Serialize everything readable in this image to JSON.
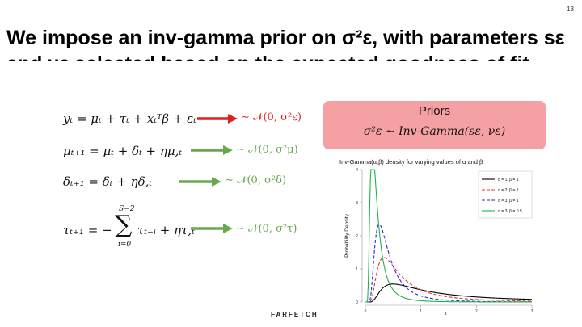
{
  "slide": {
    "number": "13",
    "title": "We impose an inv-gamma prior on σ²ε, with parameters sε",
    "title_line2": "and νε selected based on the expected goodness of fit",
    "logo": "FARFETCH"
  },
  "equations": {
    "y": "yₜ = μₜ + τₜ + xₜᵀβ + εₜ",
    "y_dist": "∼ 𝒩(0, σ²ε)",
    "mu": "μₜ₊₁ = μₜ + δₜ + ημ,ₜ",
    "mu_dist": "∼ 𝒩(0, σ²μ)",
    "delta": "δₜ₊₁ = δₜ + ηδ,ₜ",
    "delta_dist": "∼ 𝒩(0, σ²δ)",
    "tau_lhs": "τₜ₊₁ = −",
    "tau_sum_upper": "S−2",
    "tau_sum_lower": "i=0",
    "tau_rhs": "τₜ₋ᵢ + ητ,ₜ",
    "tau_dist": "∼ 𝒩(0, σ²τ)"
  },
  "priors": {
    "label": "Priors",
    "formula": "σ²ε ∼ Inv-Gamma(sε, νε)"
  },
  "colors": {
    "priors_bg": "#f5a0a3",
    "arrow_red": "#e02020",
    "arrow_green": "#6aa84f"
  },
  "chart_data": {
    "type": "line",
    "title": "Inv-Gamma(α,β) density for varying values of α and β",
    "xlabel": "x",
    "ylabel": "Probability Density",
    "xlim": [
      0,
      3
    ],
    "ylim": [
      0,
      4
    ],
    "x_ticks": [
      "0",
      "1",
      "2",
      "3"
    ],
    "y_ticks": [
      "0",
      "1",
      "2",
      "3",
      "4"
    ],
    "grid": false,
    "legend_position": "top-right",
    "series": [
      {
        "name": "α = 1, β = 1",
        "color": "#000000",
        "dash": false,
        "alpha": 1,
        "beta": 1
      },
      {
        "name": "α = 2, β = 1",
        "color": "#e8323c",
        "dash": true,
        "alpha": 2,
        "beta": 1
      },
      {
        "name": "α = 3, β = 1",
        "color": "#2a2ad0",
        "dash": true,
        "alpha": 3,
        "beta": 1
      },
      {
        "name": "α = 3, β = 0.5",
        "color": "#22b14c",
        "dash": false,
        "alpha": 3,
        "beta": 0.5
      }
    ]
  }
}
